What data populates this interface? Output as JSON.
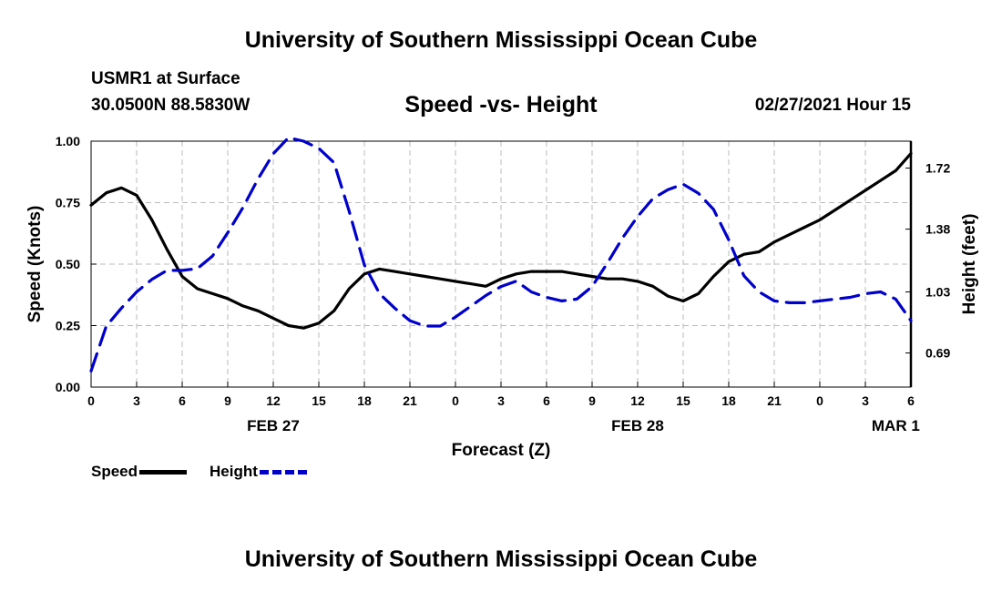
{
  "header": {
    "title": "University of Southern Mississippi Ocean Cube",
    "station": "USMR1 at Surface",
    "coordinates": "30.0500N 88.5830W",
    "datetime": "02/27/2021 Hour 15"
  },
  "footer": {
    "title": "University of Southern Mississippi Ocean Cube"
  },
  "chart_data": {
    "type": "line",
    "title": "Speed -vs- Height",
    "xlabel": "Forecast (Z)",
    "ylabel": "Speed (Knots)",
    "y2label": "Height (feet)",
    "xlim": [
      0,
      54
    ],
    "x_ticks": [
      0,
      3,
      6,
      9,
      12,
      15,
      18,
      21,
      24,
      27,
      30,
      33,
      36,
      39,
      42,
      45,
      48,
      51,
      54
    ],
    "x_tick_labels": [
      "0",
      "3",
      "6",
      "9",
      "12",
      "15",
      "18",
      "21",
      "0",
      "3",
      "6",
      "9",
      "12",
      "15",
      "18",
      "21",
      "0",
      "3",
      "6"
    ],
    "date_labels": [
      {
        "x": 12,
        "label": "FEB 27"
      },
      {
        "x": 36,
        "label": "FEB 28"
      },
      {
        "x": 53,
        "label": "MAR 1"
      }
    ],
    "ylim": [
      0,
      1
    ],
    "y_ticks": [
      0,
      0.25,
      0.5,
      0.75,
      1.0
    ],
    "y_tick_labels": [
      "0.00",
      "0.25",
      "0.50",
      "0.75",
      "1.00"
    ],
    "y2lim": [
      0.5,
      1.87
    ],
    "y2_ticks": [
      0.69,
      1.03,
      1.38,
      1.72
    ],
    "y2_tick_labels": [
      "0.69",
      "1.03",
      "1.38",
      "1.72"
    ],
    "grid": true,
    "legend": [
      {
        "name": "Speed",
        "color": "#000000",
        "style": "solid"
      },
      {
        "name": "Height",
        "color": "#0000cc",
        "style": "dashed"
      }
    ],
    "series": [
      {
        "name": "Speed",
        "axis": "left",
        "color": "#000000",
        "x": [
          0,
          1,
          2,
          3,
          4,
          5,
          6,
          7,
          8,
          9,
          10,
          11,
          12,
          13,
          14,
          15,
          16,
          17,
          18,
          19,
          20,
          21,
          22,
          23,
          24,
          25,
          26,
          27,
          28,
          29,
          30,
          31,
          32,
          33,
          34,
          35,
          36,
          37,
          38,
          39,
          40,
          41,
          42,
          43,
          44,
          45,
          46,
          47,
          48,
          49,
          50,
          51,
          52,
          53,
          54
        ],
        "values": [
          0.74,
          0.79,
          0.81,
          0.78,
          0.68,
          0.56,
          0.45,
          0.4,
          0.38,
          0.36,
          0.33,
          0.31,
          0.28,
          0.25,
          0.24,
          0.26,
          0.31,
          0.4,
          0.46,
          0.48,
          0.47,
          0.46,
          0.45,
          0.44,
          0.43,
          0.42,
          0.41,
          0.44,
          0.46,
          0.47,
          0.47,
          0.47,
          0.46,
          0.45,
          0.44,
          0.44,
          0.43,
          0.41,
          0.37,
          0.35,
          0.38,
          0.45,
          0.51,
          0.54,
          0.55,
          0.59,
          0.62,
          0.65,
          0.68,
          0.72,
          0.76,
          0.8,
          0.84,
          0.88,
          0.95
        ]
      },
      {
        "name": "Height",
        "axis": "right",
        "color": "#0000cc",
        "x": [
          0,
          1,
          2,
          3,
          4,
          5,
          6,
          7,
          8,
          9,
          10,
          11,
          12,
          13,
          14,
          15,
          16,
          17,
          18,
          19,
          20,
          21,
          22,
          23,
          24,
          25,
          26,
          27,
          28,
          29,
          30,
          31,
          32,
          33,
          34,
          35,
          36,
          37,
          38,
          39,
          40,
          41,
          42,
          43,
          44,
          45,
          46,
          47,
          48,
          49,
          50,
          51,
          52,
          53,
          54
        ],
        "values": [
          0.59,
          0.84,
          0.94,
          1.03,
          1.1,
          1.15,
          1.15,
          1.16,
          1.23,
          1.36,
          1.5,
          1.66,
          1.8,
          1.89,
          1.87,
          1.83,
          1.75,
          1.48,
          1.18,
          1.02,
          0.94,
          0.87,
          0.84,
          0.84,
          0.89,
          0.95,
          1.01,
          1.06,
          1.09,
          1.03,
          1.0,
          0.98,
          0.99,
          1.06,
          1.19,
          1.33,
          1.45,
          1.55,
          1.6,
          1.63,
          1.58,
          1.49,
          1.32,
          1.12,
          1.03,
          0.98,
          0.97,
          0.97,
          0.98,
          0.99,
          1.0,
          1.02,
          1.03,
          0.99,
          0.87
        ]
      }
    ]
  }
}
